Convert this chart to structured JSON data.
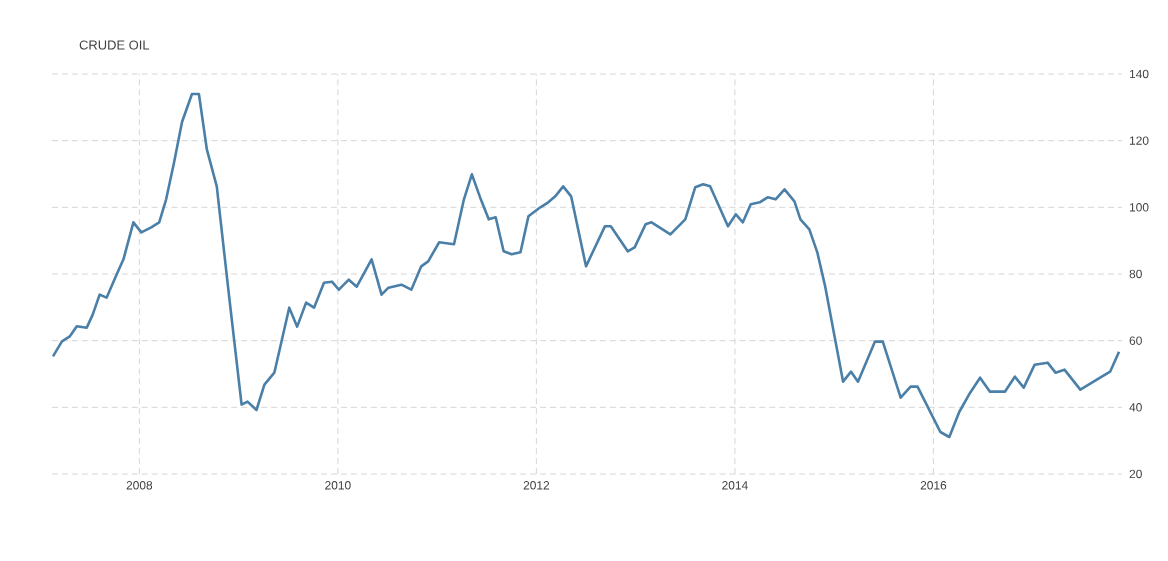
{
  "chart_data": {
    "type": "line",
    "title": "CRUDE OIL",
    "x": [
      2007.13,
      2007.22,
      2007.3,
      2007.37,
      2007.47,
      2007.53,
      2007.6,
      2007.67,
      2007.77,
      2007.84,
      2007.94,
      2008.02,
      2008.12,
      2008.2,
      2008.27,
      2008.35,
      2008.43,
      2008.53,
      2008.6,
      2008.68,
      2008.78,
      2008.9,
      2009.03,
      2009.09,
      2009.18,
      2009.26,
      2009.36,
      2009.51,
      2009.59,
      2009.68,
      2009.76,
      2009.86,
      2009.94,
      2010.01,
      2010.11,
      2010.19,
      2010.34,
      2010.44,
      2010.51,
      2010.64,
      2010.74,
      2010.84,
      2010.91,
      2011.02,
      2011.17,
      2011.27,
      2011.35,
      2011.44,
      2011.52,
      2011.59,
      2011.67,
      2011.75,
      2011.84,
      2011.92,
      2012.04,
      2012.12,
      2012.19,
      2012.27,
      2012.35,
      2012.5,
      2012.69,
      2012.75,
      2012.92,
      2012.99,
      2013.1,
      2013.16,
      2013.35,
      2013.5,
      2013.6,
      2013.68,
      2013.75,
      2013.93,
      2014.01,
      2014.08,
      2014.16,
      2014.25,
      2014.33,
      2014.41,
      2014.5,
      2014.6,
      2014.66,
      2014.75,
      2014.83,
      2014.91,
      2015.09,
      2015.17,
      2015.24,
      2015.41,
      2015.49,
      2015.67,
      2015.77,
      2015.84,
      2016.07,
      2016.16,
      2016.26,
      2016.37,
      2016.47,
      2016.57,
      2016.72,
      2016.82,
      2016.91,
      2017.02,
      2017.15,
      2017.23,
      2017.32,
      2017.48,
      2017.78,
      2017.87
    ],
    "series": [
      {
        "color": "#4a7fa8",
        "values": [
          55.3,
          59.8,
          61.3,
          64.3,
          63.9,
          67.8,
          73.8,
          72.9,
          79.8,
          84.4,
          95.5,
          92.5,
          94,
          95.5,
          102.4,
          113.5,
          125.6,
          134,
          134,
          117.4,
          106.3,
          74.4,
          40.8,
          41.7,
          39.2,
          46.8,
          50.4,
          69.9,
          64.2,
          71.4,
          69.9,
          77.4,
          77.7,
          75.3,
          78.3,
          76.2,
          84.4,
          73.8,
          75.9,
          76.8,
          75.3,
          82.3,
          83.8,
          89.5,
          88.9,
          102.4,
          109.9,
          102.4,
          96.4,
          97,
          86.8,
          85.9,
          86.5,
          97.3,
          100,
          101.5,
          103.3,
          106.3,
          103.3,
          82.3,
          94.3,
          94.3,
          86.8,
          88,
          94.9,
          95.5,
          91.9,
          96.4,
          106,
          106.9,
          106.3,
          94.3,
          97.9,
          95.5,
          100.9,
          101.5,
          103,
          102.4,
          105.4,
          101.8,
          96.4,
          93.4,
          86.5,
          76.2,
          47.7,
          50.7,
          47.7,
          59.7,
          59.7,
          42.9,
          46.2,
          46.2,
          32.6,
          31.1,
          38.6,
          44.4,
          48.9,
          44.7,
          44.7,
          49.2,
          45.9,
          52.8,
          53.4,
          50.4,
          51.3,
          45.3,
          50.7,
          56.7
        ]
      }
    ],
    "xlim": [
      2007.12,
      2017.9
    ],
    "ylim": [
      20,
      140
    ],
    "xticks": [
      2008,
      2010,
      2012,
      2014,
      2016
    ],
    "yticks": [
      20,
      40,
      60,
      80,
      100,
      120,
      140
    ],
    "grid": true,
    "line_style": "solid"
  }
}
